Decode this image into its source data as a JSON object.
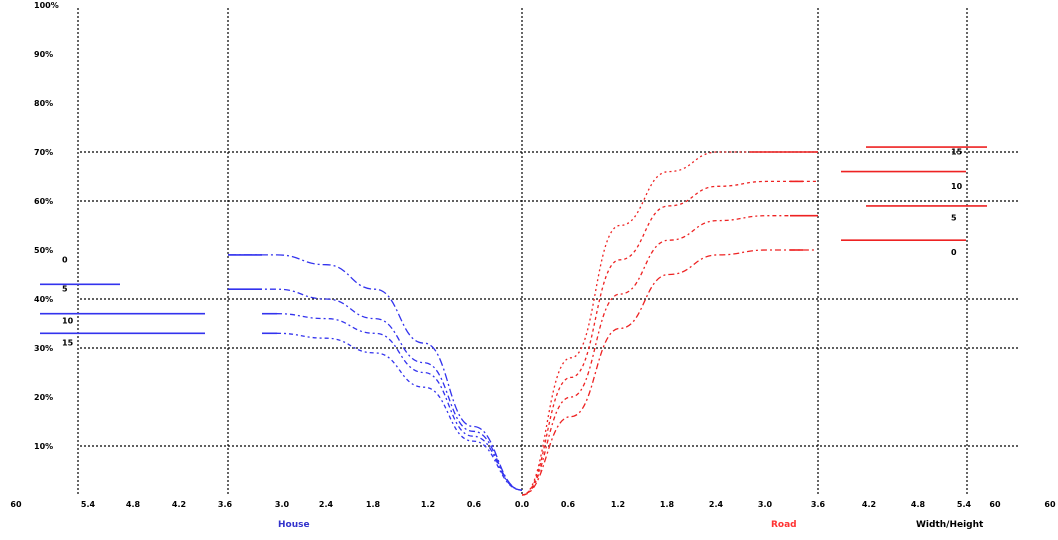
{
  "chart_data": {
    "type": "line",
    "title": "",
    "y_axis": {
      "ticks": [
        "100%",
        "90%",
        "80%",
        "70%",
        "60%",
        "50%",
        "40%",
        "30%",
        "20%",
        "10%"
      ],
      "ylim": [
        0,
        100
      ]
    },
    "x_axis": {
      "tick_labels": [
        "60",
        "5.4",
        "4.8",
        "4.2",
        "3.6",
        "3.0",
        "2.4",
        "1.8",
        "1.2",
        "0.6",
        "0.0",
        "0.6",
        "1.2",
        "1.8",
        "2.4",
        "3.0",
        "3.6",
        "4.2",
        "4.8",
        "5.4",
        "60",
        "60"
      ],
      "labels": [
        {
          "text": "House",
          "color": "#3333cc"
        },
        {
          "text": "Road",
          "color": "#ff3333"
        },
        {
          "text": "Width/Height",
          "color": "#000000"
        }
      ]
    },
    "colors": {
      "house": "#3333ee",
      "road": "#ee2222",
      "grid": "#000000"
    },
    "house": {
      "series": [
        {
          "name": "0",
          "x": [
            3.6,
            3.0,
            2.4,
            1.8,
            1.2,
            0.6,
            0.0
          ],
          "y": [
            49,
            49,
            47,
            42,
            31,
            14,
            1
          ]
        },
        {
          "name": "5",
          "x": [
            3.6,
            3.0,
            2.4,
            1.8,
            1.2,
            0.6,
            0.0
          ],
          "y": [
            42,
            42,
            40,
            36,
            27,
            13,
            1
          ]
        },
        {
          "name": "10",
          "x": [
            3.0,
            2.4,
            1.8,
            1.2,
            0.6,
            0.0
          ],
          "y": [
            37,
            36,
            33,
            25,
            12,
            1
          ]
        },
        {
          "name": "15",
          "x": [
            3.0,
            2.4,
            1.8,
            1.2,
            0.6,
            0.0
          ],
          "y": [
            33,
            32,
            29,
            22,
            11,
            1
          ]
        }
      ],
      "flat_lines": [
        {
          "label": "5",
          "y": 43
        },
        {
          "label": "10",
          "y": 37
        },
        {
          "label": "15",
          "y": 33
        }
      ]
    },
    "road": {
      "series": [
        {
          "name": "15",
          "x": [
            0.0,
            0.6,
            1.2,
            1.8,
            2.4,
            3.0,
            3.6
          ],
          "y": [
            0,
            28,
            55,
            66,
            70,
            70,
            70
          ]
        },
        {
          "name": "10",
          "x": [
            0.0,
            0.6,
            1.2,
            1.8,
            2.4,
            3.0,
            3.6
          ],
          "y": [
            0,
            24,
            48,
            59,
            63,
            64,
            64
          ]
        },
        {
          "name": "5",
          "x": [
            0.0,
            0.6,
            1.2,
            1.8,
            2.4,
            3.0,
            3.6
          ],
          "y": [
            0,
            20,
            41,
            52,
            56,
            57,
            57
          ]
        },
        {
          "name": "0",
          "x": [
            0.0,
            0.6,
            1.2,
            1.8,
            2.4,
            3.0,
            3.6
          ],
          "y": [
            0,
            16,
            34,
            45,
            49,
            50,
            50
          ]
        }
      ],
      "flat_lines": [
        {
          "label": "15",
          "y": 71
        },
        {
          "label": "10",
          "y": 66
        },
        {
          "label": "5",
          "y": 59
        },
        {
          "label": "0",
          "y": 52
        }
      ]
    }
  }
}
